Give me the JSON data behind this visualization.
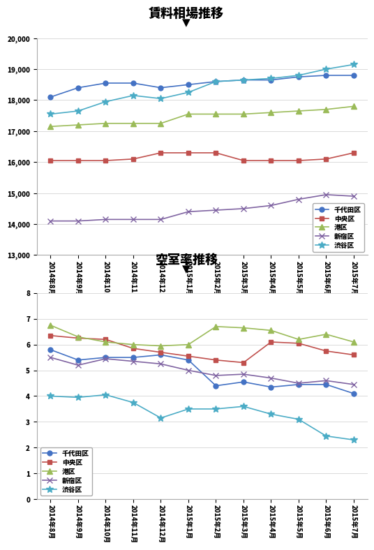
{
  "x_labels": [
    "2014年8月",
    "2014年9月",
    "2014年10月",
    "2014年11月",
    "2014年12月",
    "2015年1月",
    "2015年2月",
    "2015年3月",
    "2015年4月",
    "2015年5月",
    "2015年6月",
    "2015年7月"
  ],
  "chart1_title": "賃料相場推移",
  "chart2_title": "空室率推移",
  "rent": {
    "千代田区": [
      18100,
      18400,
      18550,
      18550,
      18400,
      18500,
      18600,
      18650,
      18650,
      18750,
      18800,
      18800
    ],
    "中央区": [
      16050,
      16050,
      16050,
      16100,
      16300,
      16300,
      16300,
      16050,
      16050,
      16050,
      16100,
      16300
    ],
    "港区": [
      17150,
      17200,
      17250,
      17250,
      17250,
      17550,
      17550,
      17550,
      17600,
      17650,
      17700,
      17800
    ],
    "新宿区": [
      14100,
      14100,
      14150,
      14150,
      14150,
      14400,
      14450,
      14500,
      14600,
      14800,
      14950,
      14900
    ],
    "渋谷区": [
      17550,
      17650,
      17950,
      18150,
      18050,
      18250,
      18600,
      18650,
      18700,
      18800,
      19000,
      19150
    ]
  },
  "vacancy": {
    "千代田区": [
      5.8,
      5.4,
      5.5,
      5.5,
      5.6,
      5.4,
      4.4,
      4.55,
      4.35,
      4.45,
      4.45,
      4.1
    ],
    "中央区": [
      6.35,
      6.25,
      6.2,
      5.85,
      5.7,
      5.55,
      5.4,
      5.3,
      6.1,
      6.05,
      5.75,
      5.6
    ],
    "港区": [
      6.75,
      6.3,
      6.1,
      6.0,
      5.95,
      6.0,
      6.7,
      6.65,
      6.55,
      6.2,
      6.4,
      6.1
    ],
    "新宿区": [
      5.5,
      5.2,
      5.45,
      5.35,
      5.25,
      5.0,
      4.8,
      4.85,
      4.7,
      4.5,
      4.6,
      4.45
    ],
    "渋谷区": [
      4.0,
      3.95,
      4.05,
      3.75,
      3.15,
      3.5,
      3.5,
      3.6,
      3.3,
      3.1,
      2.45,
      2.3
    ]
  },
  "colors": {
    "千代田区": "#4472C4",
    "中央区": "#C0504D",
    "港区": "#9BBB59",
    "新宿区": "#8064A2",
    "渋谷区": "#4BACC6"
  },
  "markers": {
    "千代田区": "o",
    "中央区": "s",
    "港区": "^",
    "新宿区": "x",
    "渋谷区": "*"
  },
  "rent_ylim": [
    13000,
    20000
  ],
  "rent_yticks": [
    13000,
    14000,
    15000,
    16000,
    17000,
    18000,
    19000,
    20000
  ],
  "vacancy_ylim": [
    0,
    8
  ],
  "vacancy_yticks": [
    0,
    1,
    2,
    3,
    4,
    5,
    6,
    7,
    8
  ],
  "areas": [
    "千代田区",
    "中央区",
    "港区",
    "新宿区",
    "渋谷区"
  ]
}
